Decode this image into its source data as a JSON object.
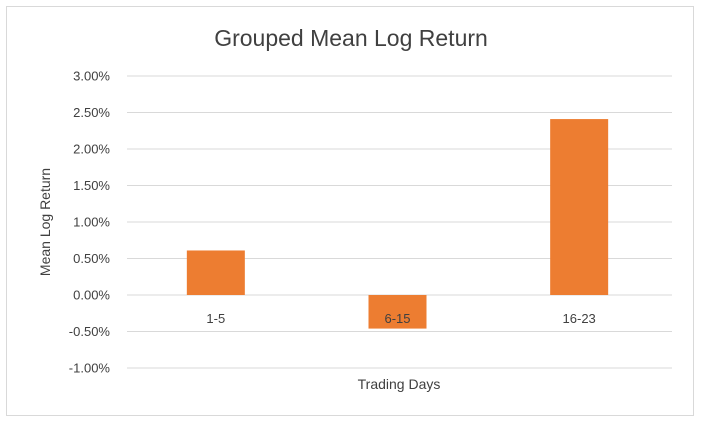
{
  "chart_data": {
    "type": "bar",
    "title": "Grouped Mean Log Return",
    "xlabel": "Trading Days",
    "ylabel": "Mean Log Return",
    "categories": [
      "1-5",
      "6-15",
      "16-23"
    ],
    "series": [
      {
        "values": [
          0.0061,
          -0.0046,
          0.0241
        ]
      }
    ],
    "ylim": [
      -0.01,
      0.03
    ],
    "yticks": [
      0.03,
      0.025,
      0.02,
      0.015,
      0.01,
      0.005,
      0.0,
      -0.005,
      -0.01
    ],
    "ytick_labels": [
      "3.00%",
      "2.50%",
      "2.00%",
      "1.50%",
      "1.00%",
      "0.50%",
      "0.00%",
      "-0.50%",
      "-1.00%"
    ],
    "grid": true,
    "legend": "none",
    "colors": {
      "bar": "#ED7D31",
      "grid": "#d9d9d9",
      "text": "#404040"
    }
  }
}
